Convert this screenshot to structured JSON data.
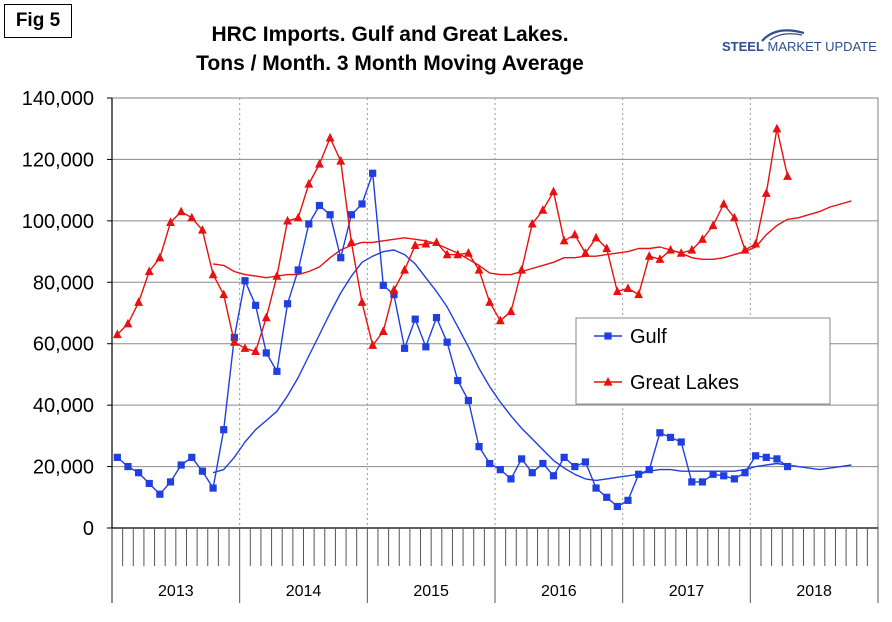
{
  "figure_label": "Fig 5",
  "brand": {
    "name_bold": "STEEL",
    "name_rest": " MARKET UPDATE",
    "color": "#2E4E8E"
  },
  "chart_data": {
    "type": "line",
    "title": "HRC Imports. Gulf and Great Lakes.",
    "subtitle": "Tons / Month. 3 Month Moving Average",
    "xlabel": "",
    "ylabel": "",
    "ylim": [
      0,
      140000
    ],
    "yticks": [
      0,
      20000,
      40000,
      60000,
      80000,
      100000,
      120000,
      140000
    ],
    "ytick_labels": [
      "0",
      "20,000",
      "40,000",
      "60,000",
      "80,000",
      "100,000",
      "120,000",
      "140,000"
    ],
    "x_unit": "month",
    "x_start": "2013-01",
    "years": [
      "2013",
      "2014",
      "2015",
      "2016",
      "2017",
      "2018"
    ],
    "months_per_year": 12,
    "grid": true,
    "legend_position": "right-middle",
    "series": [
      {
        "name": "Gulf",
        "color": "#1F3FE0",
        "marker": "square",
        "values": [
          23000,
          20000,
          18000,
          14500,
          11000,
          15000,
          20500,
          23000,
          18500,
          13000,
          32000,
          62000,
          80500,
          72500,
          57000,
          51000,
          73000,
          84000,
          99000,
          105000,
          102000,
          88000,
          102000,
          105500,
          115500,
          79000,
          76000,
          58500,
          68000,
          59000,
          68500,
          60500,
          48000,
          41500,
          26500,
          21000,
          19000,
          16000,
          22500,
          18000,
          21000,
          17000,
          23000,
          20000,
          21500,
          13000,
          10000,
          7000,
          9000,
          17500,
          19000,
          31000,
          29500,
          28000,
          15000,
          15000,
          17500,
          17000,
          16000,
          18000,
          23500,
          23000,
          22500,
          20000
        ]
      },
      {
        "name": "Great Lakes",
        "color": "#E81010",
        "marker": "triangle",
        "values": [
          63000,
          66500,
          73500,
          83500,
          88000,
          99500,
          103000,
          101000,
          97000,
          82500,
          76000,
          60500,
          58500,
          57500,
          68500,
          82000,
          100000,
          101000,
          112000,
          118500,
          127000,
          119500,
          93000,
          73500,
          59500,
          64000,
          77500,
          84000,
          92000,
          92500,
          93000,
          89000,
          89000,
          89500,
          84000,
          73500,
          67500,
          70500,
          84000,
          99000,
          103500,
          109500,
          93500,
          95500,
          89500,
          94500,
          91000,
          77000,
          78000,
          76000,
          88500,
          87500,
          90500,
          89500,
          90500,
          94000,
          98500,
          105500,
          101000,
          90500,
          92500,
          109000,
          130000,
          114500
        ]
      },
      {
        "name": "",
        "role": "trend",
        "color": "#1F3FE0",
        "marker": "none",
        "values": [
          null,
          null,
          null,
          null,
          null,
          null,
          null,
          null,
          null,
          18000,
          19000,
          23000,
          28000,
          32000,
          35000,
          38000,
          43000,
          49000,
          56000,
          63000,
          70000,
          76500,
          82000,
          86500,
          88500,
          90000,
          90500,
          89000,
          86000,
          81500,
          77000,
          72000,
          65500,
          59000,
          52000,
          46000,
          41000,
          36500,
          32500,
          29000,
          25500,
          22000,
          19500,
          17500,
          16000,
          15500,
          16000,
          16500,
          17000,
          17500,
          18500,
          19000,
          19000,
          18500,
          18500,
          18500,
          18500,
          18500,
          18500,
          19000,
          20000,
          20500,
          21000,
          20500,
          20000,
          19500,
          19000,
          19500,
          20000,
          20500
        ]
      },
      {
        "name": "",
        "role": "trend",
        "color": "#E81010",
        "marker": "none",
        "values": [
          null,
          null,
          null,
          null,
          null,
          null,
          null,
          null,
          null,
          86000,
          85500,
          83500,
          82500,
          82000,
          81500,
          82000,
          82500,
          82500,
          83500,
          85000,
          88000,
          90500,
          92000,
          93000,
          93000,
          93500,
          94000,
          94500,
          94000,
          93500,
          92500,
          91000,
          89500,
          87500,
          85500,
          83000,
          82500,
          82500,
          83500,
          84500,
          85500,
          86500,
          88000,
          88000,
          88500,
          88500,
          89000,
          89500,
          90000,
          91000,
          91000,
          91500,
          90500,
          89500,
          88000,
          87500,
          87500,
          88000,
          89000,
          90000,
          91500,
          95500,
          98500,
          100500,
          101000,
          102000,
          103000,
          104500,
          105500,
          106500
        ]
      }
    ]
  }
}
